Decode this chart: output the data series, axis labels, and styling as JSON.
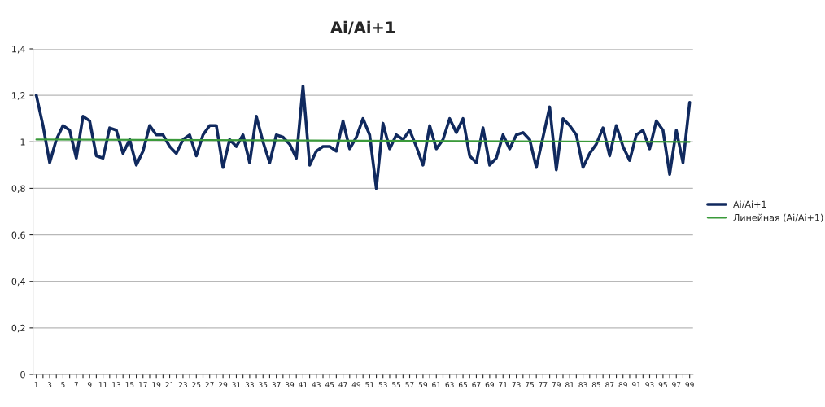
{
  "chart_data": {
    "type": "line",
    "title": "Ai/Ai+1",
    "categories": [
      "1",
      null,
      "3",
      null,
      "5",
      null,
      "7",
      null,
      "9",
      null,
      "11",
      null,
      "13",
      null,
      "15",
      null,
      "17",
      null,
      "19",
      null,
      "21",
      null,
      "23",
      null,
      "25",
      null,
      "27",
      null,
      "29",
      null,
      "31",
      null,
      "33",
      null,
      "35",
      null,
      "37",
      null,
      "39",
      null,
      "41",
      null,
      "43",
      null,
      "45",
      null,
      "47",
      null,
      "49",
      null,
      "51",
      null,
      "53",
      null,
      "55",
      null,
      "57",
      null,
      "59",
      null,
      "61",
      null,
      "63",
      null,
      "65",
      null,
      "67",
      null,
      "69",
      null,
      "71",
      null,
      "73",
      null,
      "75",
      null,
      "77",
      null,
      "79",
      null,
      "81",
      null,
      "83",
      null,
      "85",
      null,
      "87",
      null,
      "89",
      null,
      "91",
      null,
      "93",
      null,
      "95",
      null,
      "97",
      null,
      "99"
    ],
    "series": [
      {
        "name": "Ai/Ai+1",
        "color": "#10295e",
        "values": [
          1.2,
          1.07,
          0.91,
          1.01,
          1.07,
          1.05,
          0.93,
          1.11,
          1.09,
          0.94,
          0.93,
          1.06,
          1.05,
          0.95,
          1.01,
          0.9,
          0.96,
          1.07,
          1.03,
          1.03,
          0.98,
          0.95,
          1.01,
          1.03,
          0.94,
          1.03,
          1.07,
          1.07,
          0.89,
          1.01,
          0.98,
          1.03,
          0.91,
          1.11,
          1.0,
          0.91,
          1.03,
          1.02,
          0.99,
          0.93,
          1.24,
          0.9,
          0.96,
          0.98,
          0.98,
          0.96,
          1.09,
          0.97,
          1.02,
          1.1,
          1.03,
          0.8,
          1.08,
          0.97,
          1.03,
          1.01,
          1.05,
          0.98,
          0.9,
          1.07,
          0.97,
          1.01,
          1.1,
          1.04,
          1.1,
          0.94,
          0.91,
          1.06,
          0.9,
          0.93,
          1.03,
          0.97,
          1.03,
          1.04,
          1.01,
          0.89,
          1.02,
          1.15,
          0.88,
          1.1,
          1.07,
          1.03,
          0.89,
          0.95,
          0.99,
          1.06,
          0.94,
          1.07,
          0.98,
          0.92,
          1.03,
          1.05,
          0.97,
          1.09,
          1.05,
          0.86,
          1.05,
          0.91,
          1.17
        ]
      },
      {
        "name": "Линейная (Ai/Ai+1)",
        "type": "line",
        "color": "#3a9a3a",
        "x": [
          "1",
          "99"
        ],
        "values": [
          1.01,
          1.0
        ]
      }
    ],
    "ylim": [
      0,
      1.4
    ],
    "yticks": [
      0,
      {
        "value": 0.2,
        "label": "0,2"
      },
      {
        "value": 0.4,
        "label": "0,4"
      },
      {
        "value": 0.6,
        "label": "0,6"
      },
      {
        "value": 0.8,
        "label": "0,8"
      },
      1,
      {
        "value": 1.2,
        "label": "1,2"
      },
      {
        "value": 1.4,
        "label": "1,4"
      }
    ],
    "grid": "y",
    "legend": "right"
  }
}
